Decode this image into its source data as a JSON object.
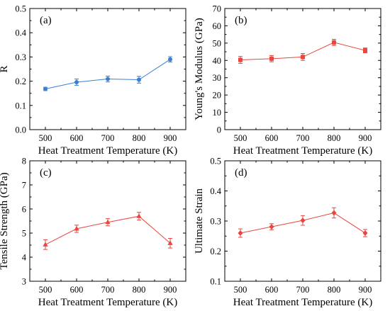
{
  "chart_data": [
    {
      "type": "line",
      "panel_label": "(a)",
      "xlabel": "Heat Treatment Temperature (K)",
      "ylabel": "R",
      "x": [
        500,
        600,
        700,
        800,
        900
      ],
      "xticks": [
        "500",
        "600",
        "700",
        "800",
        "900"
      ],
      "xlim": [
        450,
        950
      ],
      "ylim": [
        0.0,
        0.5
      ],
      "yticks": [
        "0.0",
        "0.1",
        "0.2",
        "0.3",
        "0.4",
        "0.5"
      ],
      "marker": "circle",
      "color": "#3a7fd5",
      "values": [
        0.168,
        0.196,
        0.209,
        0.206,
        0.29
      ],
      "errors": [
        0.007,
        0.013,
        0.012,
        0.014,
        0.011
      ]
    },
    {
      "type": "line",
      "panel_label": "(b)",
      "xlabel": "Heat Treatment Temperature (K)",
      "ylabel": "Young's Modulus (GPa)",
      "x": [
        500,
        600,
        700,
        800,
        900
      ],
      "xticks": [
        "500",
        "600",
        "700",
        "800",
        "900"
      ],
      "xlim": [
        450,
        950
      ],
      "ylim": [
        0,
        70
      ],
      "yticks": [
        "0",
        "10",
        "20",
        "30",
        "40",
        "50",
        "60",
        "70"
      ],
      "marker": "square",
      "color": "#e8463f",
      "values": [
        40.3,
        41.0,
        42.0,
        50.4,
        45.8
      ],
      "errors": [
        2.0,
        1.8,
        2.0,
        1.8,
        1.4
      ]
    },
    {
      "type": "line",
      "panel_label": "(c)",
      "xlabel": "Heat Treatment Temperature (K)",
      "ylabel": "Tensile Strength (GPa)",
      "x": [
        500,
        600,
        700,
        800,
        900
      ],
      "xticks": [
        "500",
        "600",
        "700",
        "800",
        "900"
      ],
      "xlim": [
        450,
        950
      ],
      "ylim": [
        3,
        8
      ],
      "yticks": [
        "3",
        "4",
        "5",
        "6",
        "7",
        "8"
      ],
      "marker": "triangle",
      "color": "#e8463f",
      "values": [
        4.52,
        5.18,
        5.45,
        5.7,
        4.58
      ],
      "errors": [
        0.2,
        0.15,
        0.15,
        0.16,
        0.2
      ]
    },
    {
      "type": "line",
      "panel_label": "(d)",
      "xlabel": "Heat Treatment Temperature (K)",
      "ylabel": "Ultimate Strain",
      "x": [
        500,
        600,
        700,
        800,
        900
      ],
      "xticks": [
        "500",
        "600",
        "700",
        "800",
        "900"
      ],
      "xlim": [
        450,
        950
      ],
      "ylim": [
        0.1,
        0.5
      ],
      "yticks": [
        "0.1",
        "0.2",
        "0.3",
        "0.4",
        "0.5"
      ],
      "marker": "diamond",
      "color": "#e8463f",
      "values": [
        0.26,
        0.281,
        0.302,
        0.327,
        0.26
      ],
      "errors": [
        0.014,
        0.01,
        0.016,
        0.017,
        0.012
      ]
    }
  ]
}
